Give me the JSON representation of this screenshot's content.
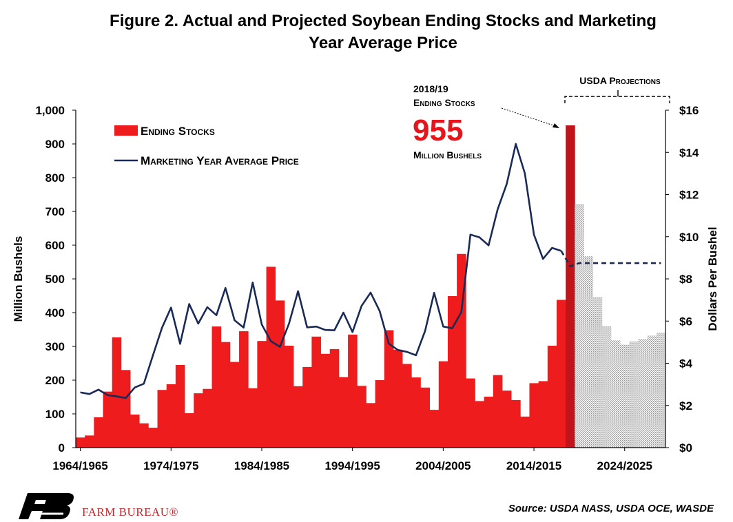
{
  "chart_data": {
    "type": "bar",
    "title": "Figure 2. Actual and Projected Soybean Ending Stocks and Marketing Year Average Price",
    "title_lines": [
      "Figure 2. Actual and Projected Soybean Ending Stocks and Marketing",
      "Year Average Price"
    ],
    "ylabel": "Million Bushels",
    "y2label": "Dollars Per Bushel",
    "ylim": [
      0,
      1000
    ],
    "y2lim": [
      0,
      16
    ],
    "yticks": [
      "0",
      "100",
      "200",
      "300",
      "400",
      "500",
      "600",
      "700",
      "800",
      "900",
      "1,000"
    ],
    "y2ticks": [
      "$0",
      "$2",
      "$4",
      "$6",
      "$8",
      "$10",
      "$12",
      "$14",
      "$16"
    ],
    "xtick_labels": [
      "1964/1965",
      "1974/1975",
      "1984/1985",
      "1994/1995",
      "2004/2005",
      "2014/2015",
      "2024/2025"
    ],
    "xtick_indices": [
      0,
      10,
      20,
      30,
      40,
      50,
      60
    ],
    "grid": false,
    "legend_position": "top-left",
    "legend": {
      "stocks": "Ending Stocks",
      "price": "Marketing Year Average Price"
    },
    "colors": {
      "actual": "#ee1c1c",
      "highlight": "#c0141a",
      "projected": "#bdbdbd",
      "price_line": "#1a2a56"
    },
    "categories": [
      "1964/1965",
      "1965/1966",
      "1966/1967",
      "1967/1968",
      "1968/1969",
      "1969/1970",
      "1970/1971",
      "1971/1972",
      "1972/1973",
      "1973/1974",
      "1974/1975",
      "1975/1976",
      "1976/1977",
      "1977/1978",
      "1978/1979",
      "1979/1980",
      "1980/1981",
      "1981/1982",
      "1982/1983",
      "1983/1984",
      "1984/1985",
      "1985/1986",
      "1986/1987",
      "1987/1988",
      "1988/1989",
      "1989/1990",
      "1990/1991",
      "1991/1992",
      "1992/1993",
      "1993/1994",
      "1994/1995",
      "1995/1996",
      "1996/1997",
      "1997/1998",
      "1998/1999",
      "1999/2000",
      "2000/2001",
      "2001/2002",
      "2002/2003",
      "2003/2004",
      "2004/2005",
      "2005/2006",
      "2006/2007",
      "2007/2008",
      "2008/2009",
      "2009/2010",
      "2010/2011",
      "2011/2012",
      "2012/2013",
      "2013/2014",
      "2014/2015",
      "2015/2016",
      "2016/2017",
      "2017/2018",
      "2018/2019",
      "2019/2020",
      "2020/2021",
      "2021/2022",
      "2022/2023",
      "2023/2024",
      "2024/2025",
      "2025/2026",
      "2026/2027",
      "2027/2028",
      "2028/2029"
    ],
    "series": [
      {
        "name": "Ending Stocks",
        "axis": "left",
        "values": [
          30,
          36,
          90,
          166,
          327,
          230,
          98,
          72,
          59,
          171,
          188,
          245,
          102,
          161,
          174,
          359,
          313,
          254,
          345,
          176,
          316,
          536,
          436,
          302,
          182,
          239,
          329,
          278,
          292,
          209,
          335,
          183,
          132,
          200,
          348,
          290,
          248,
          208,
          178,
          112,
          256,
          449,
          574,
          205,
          138,
          151,
          215,
          169,
          141,
          92,
          191,
          197,
          302,
          438,
          955,
          722,
          567,
          446,
          360,
          318,
          305,
          315,
          322,
          332,
          340
        ]
      },
      {
        "name": "Marketing Year Average Price",
        "axis": "right",
        "values": [
          2.62,
          2.54,
          2.75,
          2.49,
          2.43,
          2.35,
          2.85,
          3.03,
          4.37,
          5.68,
          6.64,
          4.92,
          6.81,
          5.88,
          6.66,
          6.28,
          7.57,
          6.04,
          5.69,
          7.83,
          5.84,
          5.05,
          4.78,
          5.88,
          7.42,
          5.7,
          5.74,
          5.58,
          5.56,
          6.4,
          5.48,
          6.72,
          7.35,
          6.47,
          4.93,
          4.63,
          4.54,
          4.38,
          5.53,
          7.34,
          5.74,
          5.66,
          6.43,
          10.1,
          9.97,
          9.59,
          11.3,
          12.5,
          14.4,
          13.0,
          10.1,
          8.95,
          9.47,
          9.33,
          8.6,
          8.75,
          8.75,
          8.75,
          8.75,
          8.75,
          8.75,
          8.75,
          8.75,
          8.75,
          8.75
        ]
      }
    ],
    "highlight_index": 54,
    "projection_start_index": 55,
    "price_dashed_from_index": 54,
    "annotations": {
      "projections_label": "USDA Projections",
      "callout_year": "2018/19",
      "callout_sub": "Ending Stocks",
      "callout_value": "955",
      "callout_unit": "Million Bushels"
    }
  },
  "footer": {
    "source": "Source: USDA NASS, USDA OCE, WASDE",
    "brand": "FARM BUREAU®",
    "logo_icon": "farm-bureau-logo-icon"
  }
}
